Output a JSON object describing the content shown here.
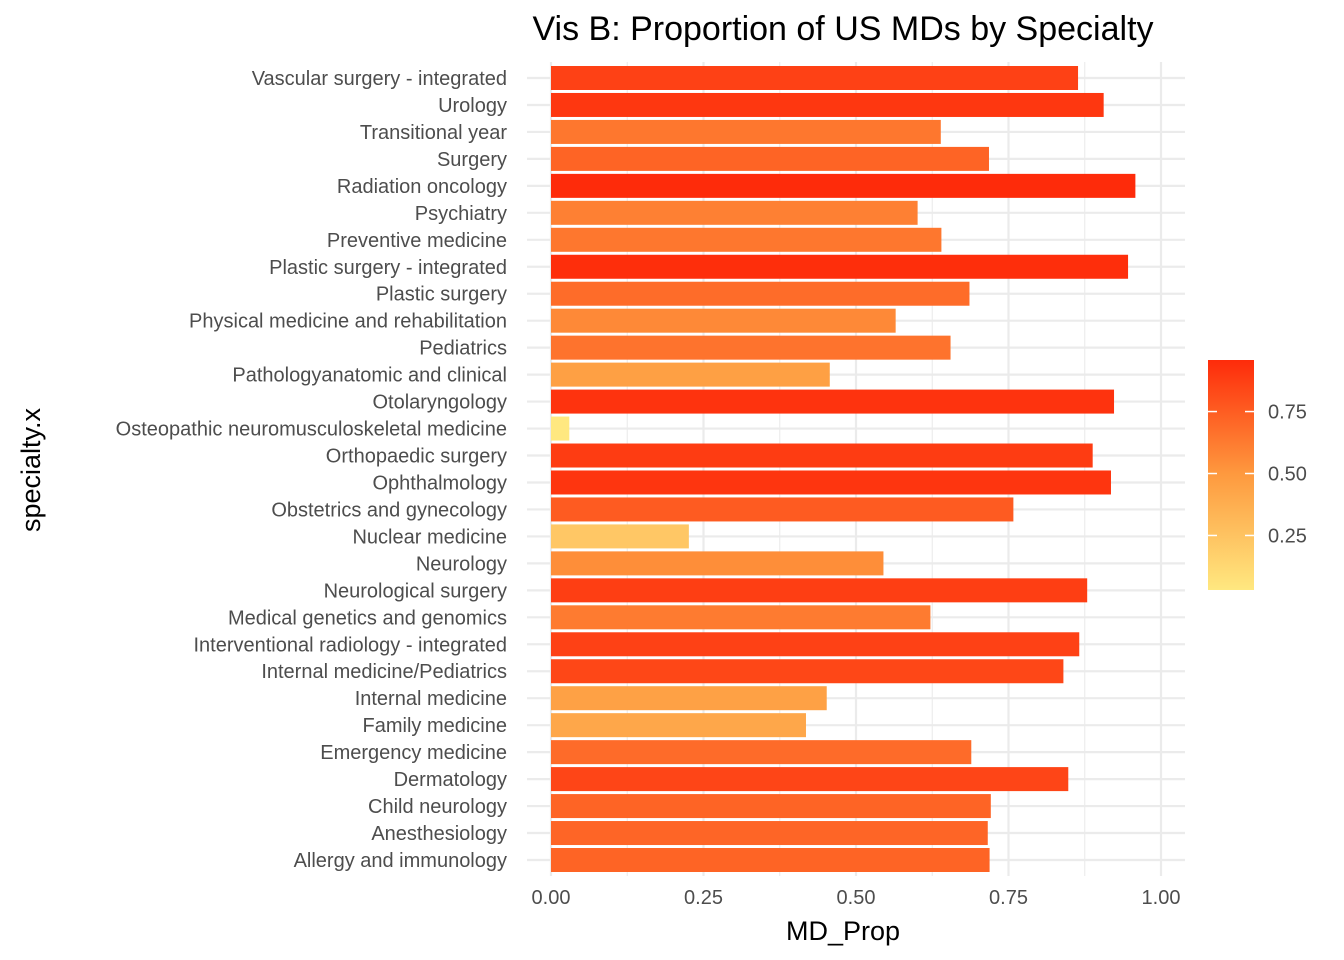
{
  "chart_data": {
    "type": "bar",
    "orientation": "horizontal",
    "title": "Vis B: Proportion of US MDs by Specialty",
    "xlabel": "MD_Prop",
    "ylabel": "specialty.x",
    "xlim": [
      0,
      1
    ],
    "xticks": [
      0,
      0.25,
      0.5,
      0.75,
      1
    ],
    "xtick_labels": [
      "0.00",
      "0.25",
      "0.50",
      "0.75",
      "1.00"
    ],
    "grid": true,
    "categories": [
      "Vascular surgery - integrated",
      "Urology",
      "Transitional year",
      "Surgery",
      "Radiation oncology",
      "Psychiatry",
      "Preventive medicine",
      "Plastic surgery - integrated",
      "Plastic surgery",
      "Physical medicine and rehabilitation",
      "Pediatrics",
      "Pathologyanatomic and clinical",
      "Otolaryngology",
      "Osteopathic neuromusculoskeletal medicine",
      "Orthopaedic surgery",
      "Ophthalmology",
      "Obstetrics and gynecology",
      "Nuclear medicine",
      "Neurology",
      "Neurological surgery",
      "Medical genetics and genomics",
      "Interventional radiology - integrated",
      "Internal medicine/Pediatrics",
      "Internal medicine",
      "Family medicine",
      "Emergency medicine",
      "Dermatology",
      "Child neurology",
      "Anesthesiology",
      "Allergy and immunology"
    ],
    "values": [
      0.864,
      0.906,
      0.639,
      0.718,
      0.958,
      0.601,
      0.64,
      0.946,
      0.686,
      0.565,
      0.655,
      0.457,
      0.923,
      0.03,
      0.888,
      0.918,
      0.758,
      0.226,
      0.545,
      0.879,
      0.622,
      0.866,
      0.84,
      0.452,
      0.418,
      0.689,
      0.848,
      0.721,
      0.716,
      0.719
    ],
    "color_scale": {
      "low_color": "#ffe880",
      "mid_color": "#fe9a3f",
      "high_color": "#fe2b0a",
      "range": [
        0.03,
        0.958
      ],
      "legend_ticks": [
        0.25,
        0.5,
        0.75
      ],
      "legend_tick_labels": [
        "0.25",
        "0.50",
        "0.75"
      ],
      "legend_position": "right"
    }
  }
}
